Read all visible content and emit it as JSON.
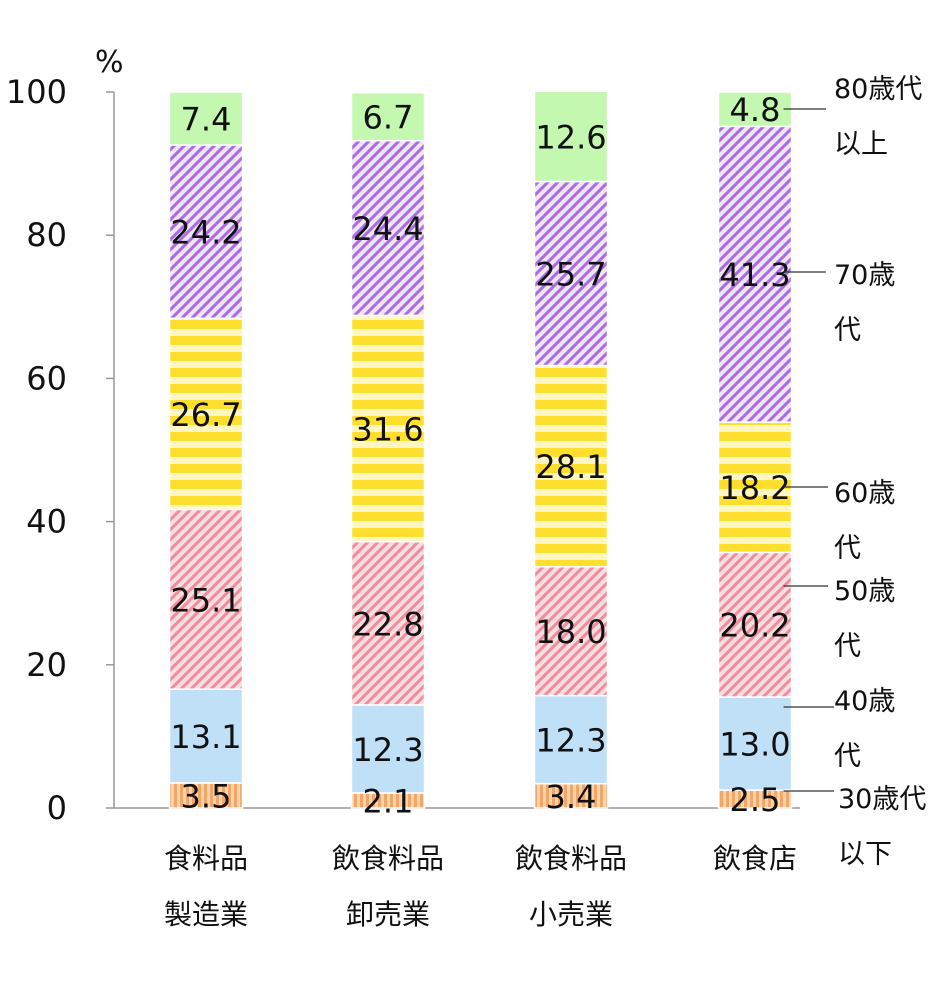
{
  "chart_data": {
    "type": "bar",
    "stacked": true,
    "unit": "%",
    "ylim": [
      0,
      100
    ],
    "yticks": [
      "0",
      "20",
      "40",
      "60",
      "80",
      "100"
    ],
    "categories": [
      [
        "食料品",
        "製造業"
      ],
      [
        "飲食料品",
        "卸売業"
      ],
      [
        "飲食料品",
        "小売業"
      ],
      [
        "飲食店"
      ]
    ],
    "series": [
      {
        "name": [
          "30歳代",
          "以下"
        ],
        "values": [
          3.5,
          2.1,
          3.4,
          2.5
        ],
        "labels": [
          "3.5",
          "2.1",
          "3.4",
          "2.5"
        ],
        "color": "#f5b27a",
        "pattern": "vstripe"
      },
      {
        "name": [
          "40歳",
          "代"
        ],
        "values": [
          13.1,
          12.3,
          12.3,
          13.0
        ],
        "labels": [
          "13.1",
          "12.3",
          "12.3",
          "13.0"
        ],
        "color": "#bfe0f7",
        "pattern": "solid"
      },
      {
        "name": [
          "50歳",
          "代"
        ],
        "values": [
          25.1,
          22.8,
          18.0,
          20.2
        ],
        "labels": [
          "25.1",
          "22.8",
          "18.0",
          "20.2"
        ],
        "color": "#f09aa6",
        "pattern": "zigzag"
      },
      {
        "name": [
          "60歳",
          "代"
        ],
        "values": [
          26.7,
          31.6,
          28.1,
          18.2
        ],
        "labels": [
          "26.7",
          "31.6",
          "28.1",
          "18.2"
        ],
        "color": "#ffe033",
        "pattern": "hstripe"
      },
      {
        "name": [
          "70歳",
          "代"
        ],
        "values": [
          24.2,
          24.4,
          25.7,
          41.3
        ],
        "labels": [
          "24.2",
          "24.4",
          "25.7",
          "41.3"
        ],
        "color": "#b57ee8",
        "pattern": "diag"
      },
      {
        "name": [
          "80歳代",
          "以上"
        ],
        "values": [
          7.4,
          6.7,
          12.6,
          4.8
        ],
        "labels": [
          "7.4",
          "6.7",
          "12.6",
          "4.8"
        ],
        "color": "#c4f7b0",
        "pattern": "solid"
      }
    ]
  }
}
